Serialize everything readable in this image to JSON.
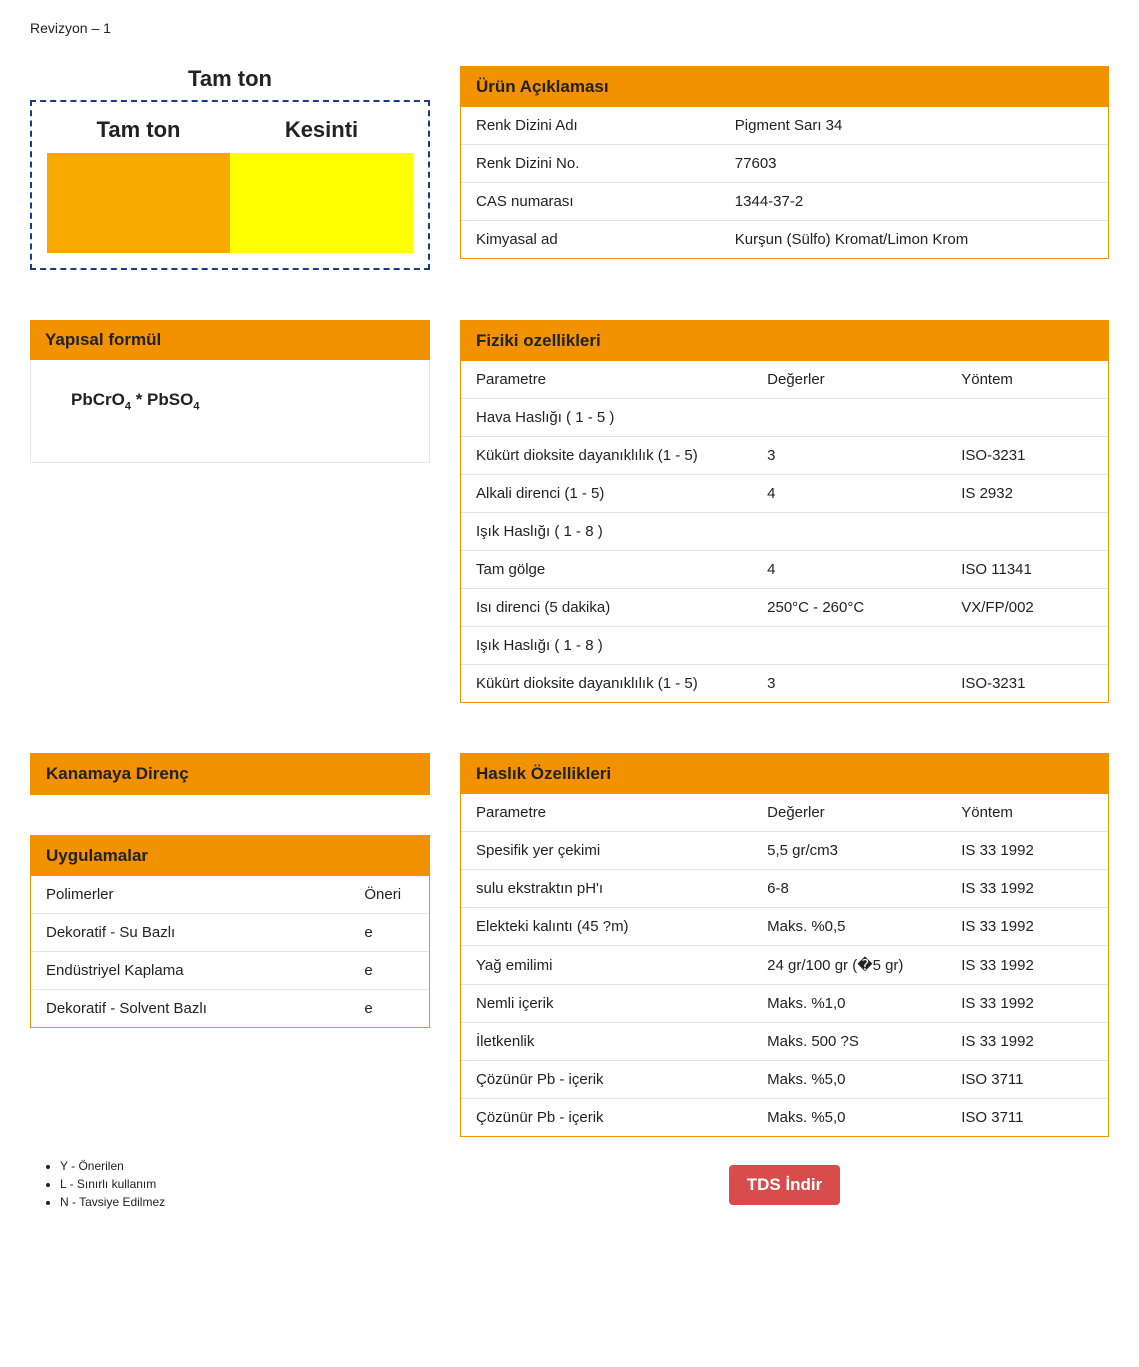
{
  "revision": "Revizyon – 1",
  "swatch": {
    "title": "Tam ton",
    "full_label": "Tam ton",
    "cut_label": "Kesinti",
    "full_color": "#f8a900",
    "cut_color": "#ffff00",
    "border_color": "#1a3a8a"
  },
  "product_desc": {
    "header": "Ürün Açıklaması",
    "rows": [
      {
        "label": "Renk Dizini Adı",
        "value": "Pigment Sarı 34"
      },
      {
        "label": "Renk Dizini No.",
        "value": "77603"
      },
      {
        "label": "CAS numarası",
        "value": "1344-37-2"
      },
      {
        "label": "Kimyasal ad",
        "value": "Kurşun (Sülfo) Kromat/Limon Krom"
      }
    ]
  },
  "structural": {
    "header": "Yapısal formül",
    "formula_html": "PbCrO<sub>4</sub> * PbSO<sub>4</sub>"
  },
  "physical": {
    "header": "Fiziki ozellikleri",
    "cols": [
      "Parametre",
      "Değerler",
      "Yöntem"
    ],
    "rows": [
      {
        "p": "Hava Haslığı ( 1 - 5 )",
        "v": "",
        "m": ""
      },
      {
        "p": "Kükürt dioksite dayanıklılık (1 - 5)",
        "v": "3",
        "m": "ISO-3231"
      },
      {
        "p": "Alkali direnci (1 - 5)",
        "v": "4",
        "m": "IS 2932"
      },
      {
        "p": "Işık Haslığı ( 1 - 8 )",
        "v": "",
        "m": ""
      },
      {
        "p": "Tam gölge",
        "v": "4",
        "m": "ISO 11341"
      },
      {
        "p": "Isı direnci (5 dakika)",
        "v": "250°C - 260°C",
        "m": "VX/FP/002"
      },
      {
        "p": "Işık Haslığı ( 1 - 8 )",
        "v": "",
        "m": ""
      },
      {
        "p": "Kükürt dioksite dayanıklılık (1 - 5)",
        "v": "3",
        "m": "ISO-3231"
      }
    ]
  },
  "bleeding": {
    "header": "Kanamaya Direnç"
  },
  "applications": {
    "header": "Uygulamalar",
    "cols": [
      "Polimerler",
      "Öneri"
    ],
    "rows": [
      {
        "p": "Dekoratif - Su Bazlı",
        "v": "e"
      },
      {
        "p": "Endüstriyel Kaplama",
        "v": "e"
      },
      {
        "p": "Dekoratif - Solvent Bazlı",
        "v": "e"
      }
    ]
  },
  "fastness": {
    "header": "Haslık Özellikleri",
    "cols": [
      "Parametre",
      "Değerler",
      "Yöntem"
    ],
    "rows": [
      {
        "p": "Spesifik yer çekimi",
        "v": "5,5 gr/cm3",
        "m": "IS 33 1992"
      },
      {
        "p": "sulu ekstraktın pH'ı",
        "v": "6-8",
        "m": "IS 33 1992"
      },
      {
        "p": "Elekteki kalıntı (45 ?m)",
        "v": "Maks. %0,5",
        "m": "IS 33 1992"
      },
      {
        "p": "Yağ emilimi",
        "v": "24 gr/100 gr (�5 gr)",
        "m": "IS 33 1992"
      },
      {
        "p": "Nemli içerik",
        "v": "Maks. %1,0",
        "m": "IS 33 1992"
      },
      {
        "p": "İletkenlik",
        "v": "Maks. 500 ?S",
        "m": "IS 33 1992"
      },
      {
        "p": "Çözünür Pb - içerik",
        "v": "Maks. %5,0",
        "m": "ISO 3711"
      },
      {
        "p": "Çözünür Pb - içerik",
        "v": "Maks. %5,0",
        "m": "ISO 3711"
      }
    ]
  },
  "legend": [
    "Y - Önerilen",
    "L - Sınırlı kullanım",
    "N - Tavsiye Edilmez"
  ],
  "tds_button": "TDS İndir",
  "colors": {
    "panel_accent": "#f29200",
    "button_bg": "#d84c4c"
  }
}
